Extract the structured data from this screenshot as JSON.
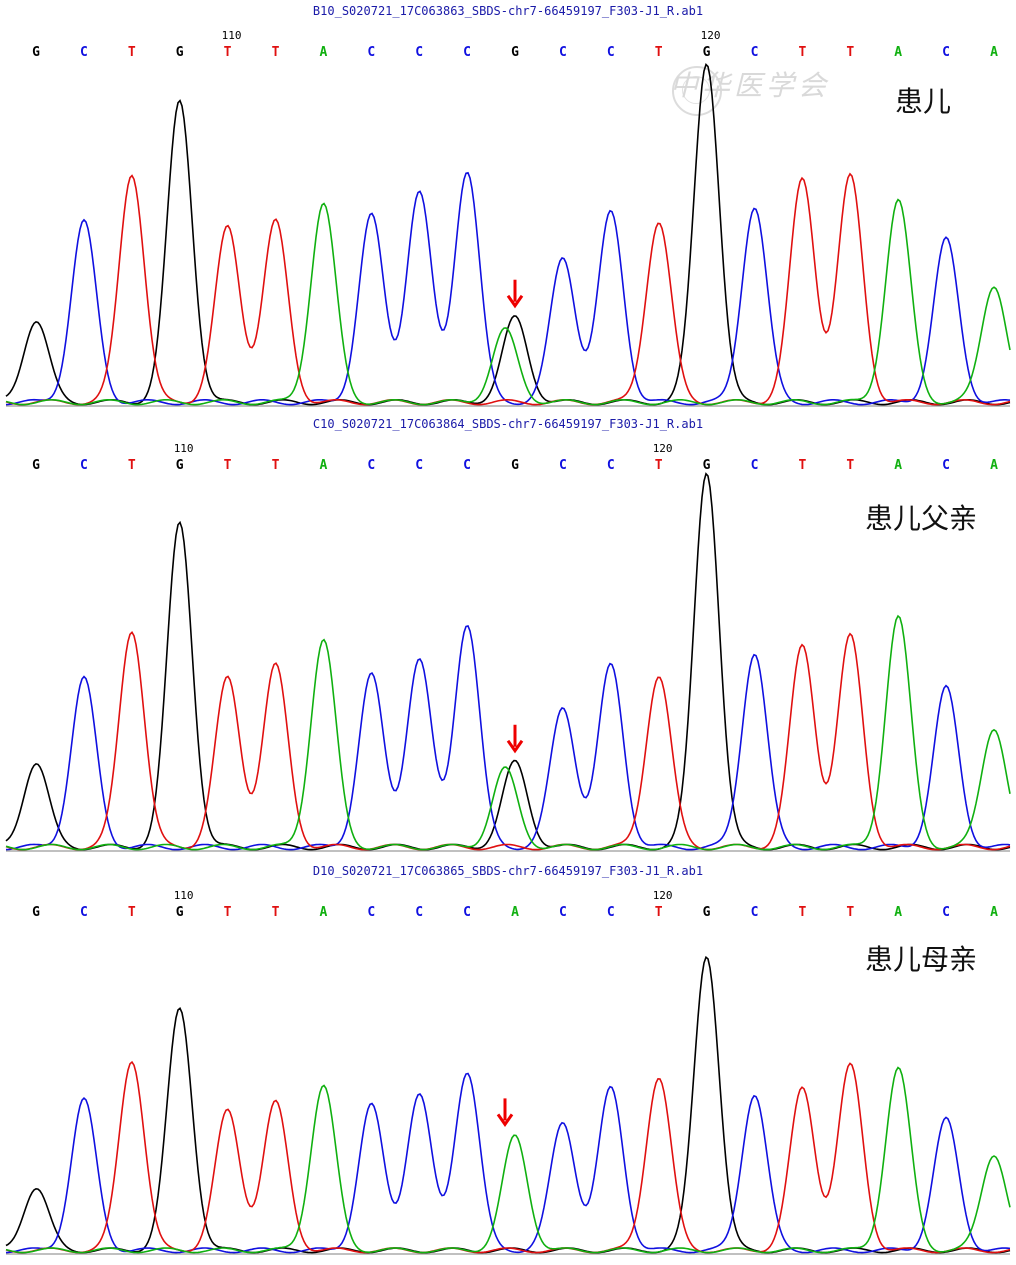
{
  "watermark": "中华医学会",
  "colors": {
    "G": "#000000",
    "C": "#1010e0",
    "T": "#e01010",
    "A": "#10b010",
    "arrow": "#ee0000",
    "title": "#1a1aa8",
    "baseline": "#808080"
  },
  "chart_data": [
    {
      "type": "line",
      "title": "B10_S020721_17C063863_SBDS-chr7-66459197_F303-J1_R.ab1",
      "label": "患儿",
      "bases": [
        "G",
        "C",
        "T",
        "G",
        "T",
        "T",
        "A",
        "C",
        "C",
        "C",
        "G",
        "C",
        "C",
        "T",
        "G",
        "C",
        "T",
        "T",
        "A",
        "C",
        "A"
      ],
      "positions": [
        {
          "index": 4,
          "text": "110"
        },
        {
          "index": 14,
          "text": "120"
        }
      ],
      "peaks": [
        0.27,
        0.6,
        0.76,
        1.0,
        0.58,
        0.6,
        0.66,
        0.62,
        0.7,
        0.77,
        0.28,
        0.48,
        0.63,
        0.6,
        1.13,
        0.65,
        0.74,
        0.75,
        0.67,
        0.54,
        0.39
      ],
      "secondary_peaks": [
        {
          "index": 10,
          "base": "A",
          "height": 0.24
        }
      ],
      "arrow_index": 10
    },
    {
      "type": "line",
      "title": "C10_S020721_17C063864_SBDS-chr7-66459197_F303-J1_R.ab1",
      "label": "患儿父亲",
      "bases": [
        "G",
        "C",
        "T",
        "G",
        "T",
        "T",
        "A",
        "C",
        "C",
        "C",
        "G",
        "C",
        "C",
        "T",
        "G",
        "C",
        "T",
        "T",
        "A",
        "C",
        "A"
      ],
      "positions": [
        {
          "index": 3,
          "text": "110"
        },
        {
          "index": 13,
          "text": "120"
        }
      ],
      "peaks": [
        0.26,
        0.52,
        0.67,
        1.0,
        0.52,
        0.56,
        0.64,
        0.53,
        0.58,
        0.69,
        0.26,
        0.43,
        0.56,
        0.53,
        1.16,
        0.6,
        0.62,
        0.65,
        0.71,
        0.49,
        0.37
      ],
      "secondary_peaks": [
        {
          "index": 10,
          "base": "A",
          "height": 0.24
        }
      ],
      "arrow_index": 10
    },
    {
      "type": "line",
      "title": "D10_S020721_17C063865_SBDS-chr7-66459197_F303-J1_R.ab1",
      "label": "患儿母亲",
      "bases": [
        "G",
        "C",
        "T",
        "G",
        "T",
        "T",
        "A",
        "C",
        "C",
        "C",
        "A",
        "C",
        "C",
        "T",
        "G",
        "C",
        "T",
        "T",
        "A",
        "C",
        "A"
      ],
      "positions": [
        {
          "index": 3,
          "text": "110"
        },
        {
          "index": 13,
          "text": "120"
        }
      ],
      "peaks": [
        0.22,
        0.53,
        0.67,
        0.85,
        0.49,
        0.52,
        0.58,
        0.51,
        0.55,
        0.63,
        0.4,
        0.45,
        0.57,
        0.61,
        1.04,
        0.55,
        0.57,
        0.65,
        0.64,
        0.46,
        0.34
      ],
      "secondary_peaks": [],
      "arrow_index": 10
    }
  ]
}
